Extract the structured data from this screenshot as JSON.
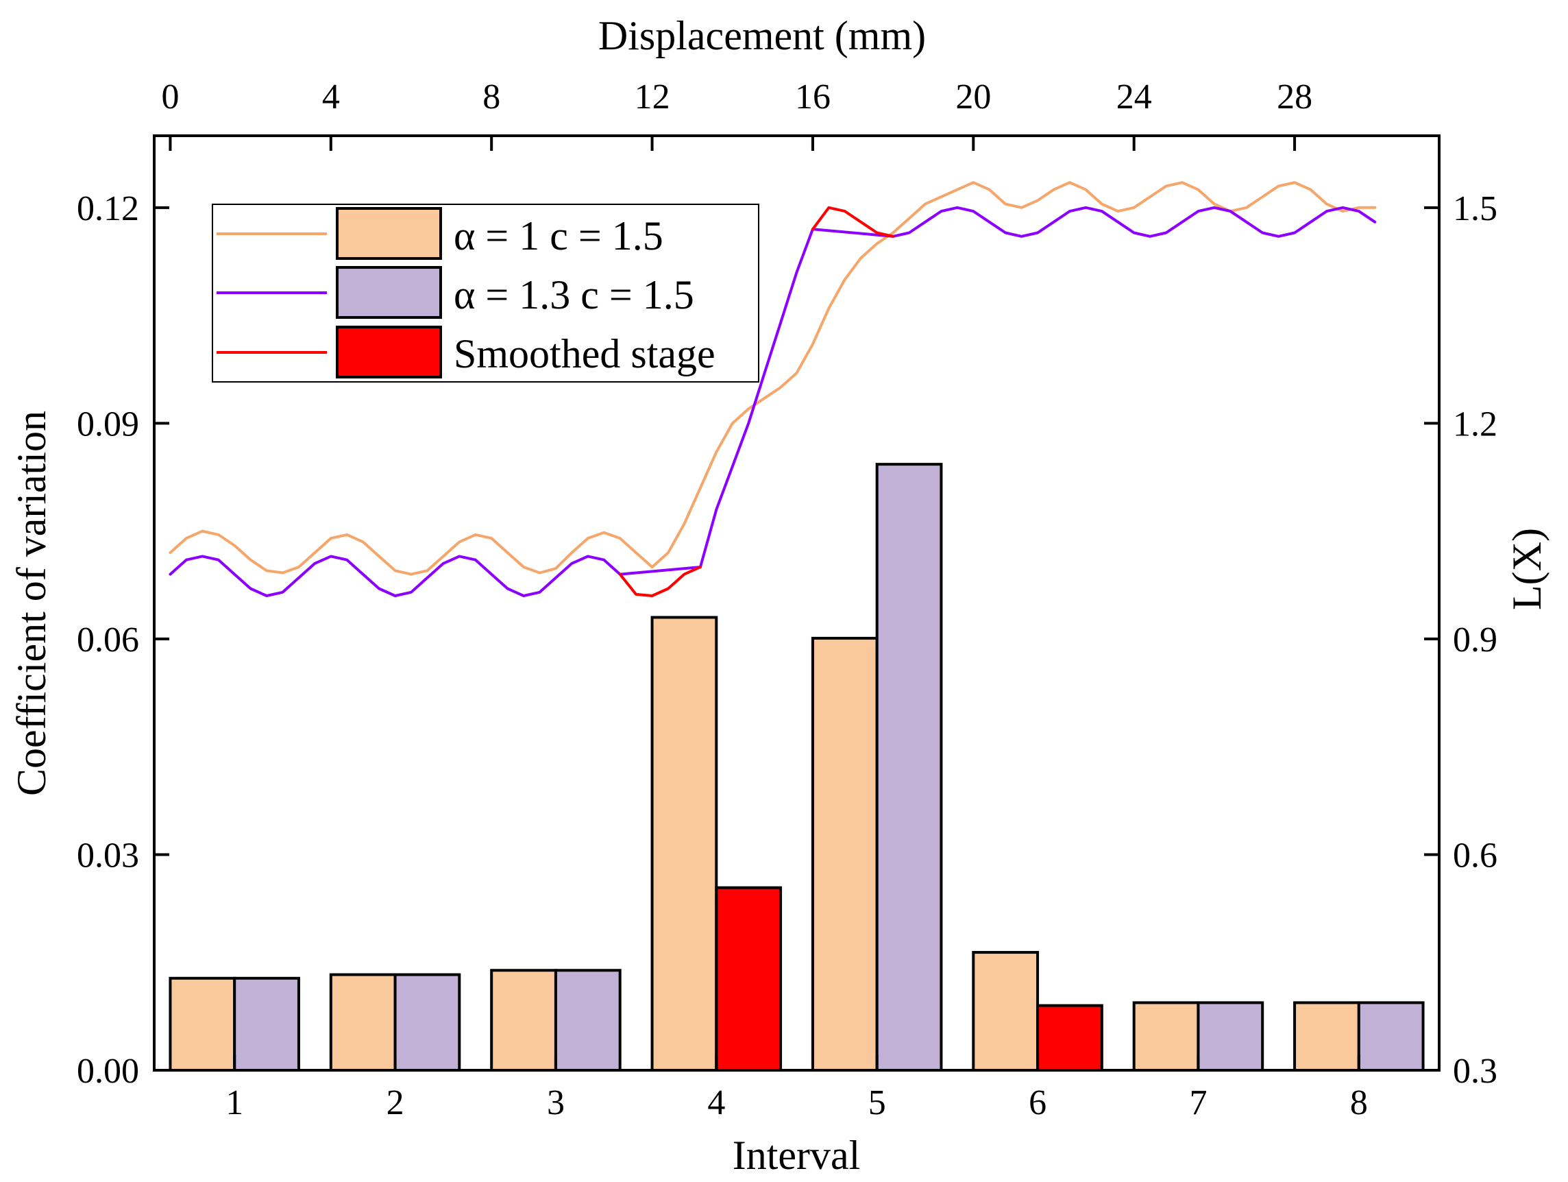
{
  "chart_data": {
    "type": "bar+line",
    "xlabel": "Interval",
    "x2label": "Displacement (mm)",
    "ylabel": "Coefficient of variation",
    "y2label": "L(X)",
    "categories": [
      "1",
      "2",
      "3",
      "4",
      "5",
      "6",
      "7",
      "8"
    ],
    "ylim": [
      0,
      0.13
    ],
    "yticks": [
      "0.00",
      "0.03",
      "0.06",
      "0.09",
      "0.12"
    ],
    "y2lim": [
      0.3,
      1.6
    ],
    "y2ticks": [
      "0.3",
      "0.6",
      "0.9",
      "1.2",
      "1.5"
    ],
    "x2lim": [
      -0.4,
      31.6
    ],
    "x2ticks": [
      "0",
      "4",
      "8",
      "12",
      "16",
      "20",
      "24",
      "28"
    ],
    "bar_series": [
      {
        "name": "α = 1 c = 1.5",
        "color": "#F9C89B",
        "values": [
          0.0128,
          0.0133,
          0.0139,
          0.063,
          0.0601,
          0.0164,
          0.0094,
          0.0094
        ]
      },
      {
        "name": "α = 1.3 c = 1.5",
        "color": "#C1B1D7",
        "smoothed_color": "#FF0000",
        "smoothed_intervals": [
          "4",
          "6"
        ],
        "values": [
          0.0128,
          0.0133,
          0.0139,
          0.0254,
          0.0843,
          0.009,
          0.0094,
          0.0094
        ]
      }
    ],
    "line_series": [
      {
        "name": "α = 1 c = 1.5",
        "color": "#F5A66A",
        "x": [
          0,
          0.4,
          0.8,
          1.2,
          1.6,
          2.0,
          2.4,
          2.8,
          3.2,
          3.6,
          4.0,
          4.4,
          4.8,
          5.2,
          5.6,
          6.0,
          6.4,
          6.8,
          7.2,
          7.6,
          8.0,
          8.4,
          8.8,
          9.2,
          9.6,
          10.0,
          10.4,
          10.8,
          11.2,
          11.6,
          12.0,
          12.4,
          12.8,
          13.2,
          13.6,
          14.0,
          14.4,
          14.8,
          15.2,
          15.6,
          16.0,
          16.4,
          16.8,
          17.2,
          17.6,
          18.0,
          18.4,
          18.8,
          19.2,
          19.6,
          20.0,
          20.4,
          20.8,
          21.2,
          21.6,
          22.0,
          22.4,
          22.8,
          23.2,
          23.6,
          24.0,
          24.4,
          24.8,
          25.2,
          25.6,
          26.0,
          26.4,
          26.8,
          27.2,
          27.6,
          28.0,
          28.4,
          28.8,
          29.2,
          29.6,
          30.0
        ],
        "y": [
          1.02,
          1.04,
          1.05,
          1.045,
          1.03,
          1.01,
          0.995,
          0.992,
          1.0,
          1.02,
          1.04,
          1.045,
          1.035,
          1.015,
          0.995,
          0.99,
          0.995,
          1.015,
          1.035,
          1.045,
          1.04,
          1.02,
          1.0,
          0.992,
          0.998,
          1.02,
          1.04,
          1.048,
          1.04,
          1.02,
          1.0,
          1.02,
          1.06,
          1.11,
          1.16,
          1.2,
          1.22,
          1.235,
          1.25,
          1.27,
          1.31,
          1.36,
          1.4,
          1.43,
          1.45,
          1.465,
          1.485,
          1.505,
          1.515,
          1.525,
          1.535,
          1.525,
          1.505,
          1.5,
          1.51,
          1.525,
          1.535,
          1.525,
          1.505,
          1.495,
          1.5,
          1.515,
          1.53,
          1.535,
          1.525,
          1.505,
          1.495,
          1.5,
          1.515,
          1.53,
          1.535,
          1.525,
          1.505,
          1.495,
          1.5,
          1.5
        ]
      },
      {
        "name": "α = 1.3 c = 1.5",
        "color": "#8B00FF",
        "x": [
          0,
          0.4,
          0.8,
          1.2,
          1.6,
          2.0,
          2.4,
          2.8,
          3.2,
          3.6,
          4.0,
          4.4,
          4.8,
          5.2,
          5.6,
          6.0,
          6.4,
          6.8,
          7.2,
          7.6,
          8.0,
          8.4,
          8.8,
          9.2,
          9.6,
          10.0,
          10.4,
          10.8,
          11.2,
          13.2,
          13.6,
          14.0,
          14.4,
          14.8,
          15.2,
          15.6,
          16.0,
          18.0,
          18.4,
          18.8,
          19.2,
          19.6,
          20.0,
          20.4,
          20.8,
          21.2,
          21.6,
          22.0,
          22.4,
          22.8,
          23.2,
          23.6,
          24.0,
          24.4,
          24.8,
          25.2,
          25.6,
          26.0,
          26.4,
          26.8,
          27.2,
          27.6,
          28.0,
          28.4,
          28.8,
          29.2,
          29.6,
          30.0
        ],
        "y": [
          0.99,
          1.01,
          1.015,
          1.01,
          0.99,
          0.97,
          0.96,
          0.965,
          0.985,
          1.005,
          1.015,
          1.01,
          0.99,
          0.97,
          0.96,
          0.965,
          0.985,
          1.005,
          1.015,
          1.01,
          0.99,
          0.97,
          0.96,
          0.965,
          0.985,
          1.005,
          1.015,
          1.01,
          0.99,
          1.0,
          1.08,
          1.14,
          1.2,
          1.27,
          1.34,
          1.41,
          1.47,
          1.46,
          1.465,
          1.48,
          1.495,
          1.5,
          1.495,
          1.48,
          1.465,
          1.46,
          1.465,
          1.48,
          1.495,
          1.5,
          1.495,
          1.48,
          1.465,
          1.46,
          1.465,
          1.48,
          1.495,
          1.5,
          1.495,
          1.48,
          1.465,
          1.46,
          1.465,
          1.48,
          1.495,
          1.5,
          1.495,
          1.48
        ]
      },
      {
        "name": "Smoothed stage",
        "color": "#FF0000",
        "segments": [
          {
            "x": [
              11.2,
              11.6,
              12.0,
              12.4,
              12.8,
              13.2
            ],
            "y": [
              0.99,
              0.962,
              0.96,
              0.97,
              0.99,
              1.0
            ]
          },
          {
            "x": [
              16.0,
              16.4,
              16.8,
              17.2,
              17.6,
              18.0
            ],
            "y": [
              1.47,
              1.5,
              1.495,
              1.48,
              1.465,
              1.46
            ]
          }
        ]
      }
    ],
    "legend": {
      "position": "top-left",
      "entries": [
        "α = 1 c = 1.5",
        "α = 1.3 c = 1.5",
        "Smoothed stage"
      ]
    }
  }
}
